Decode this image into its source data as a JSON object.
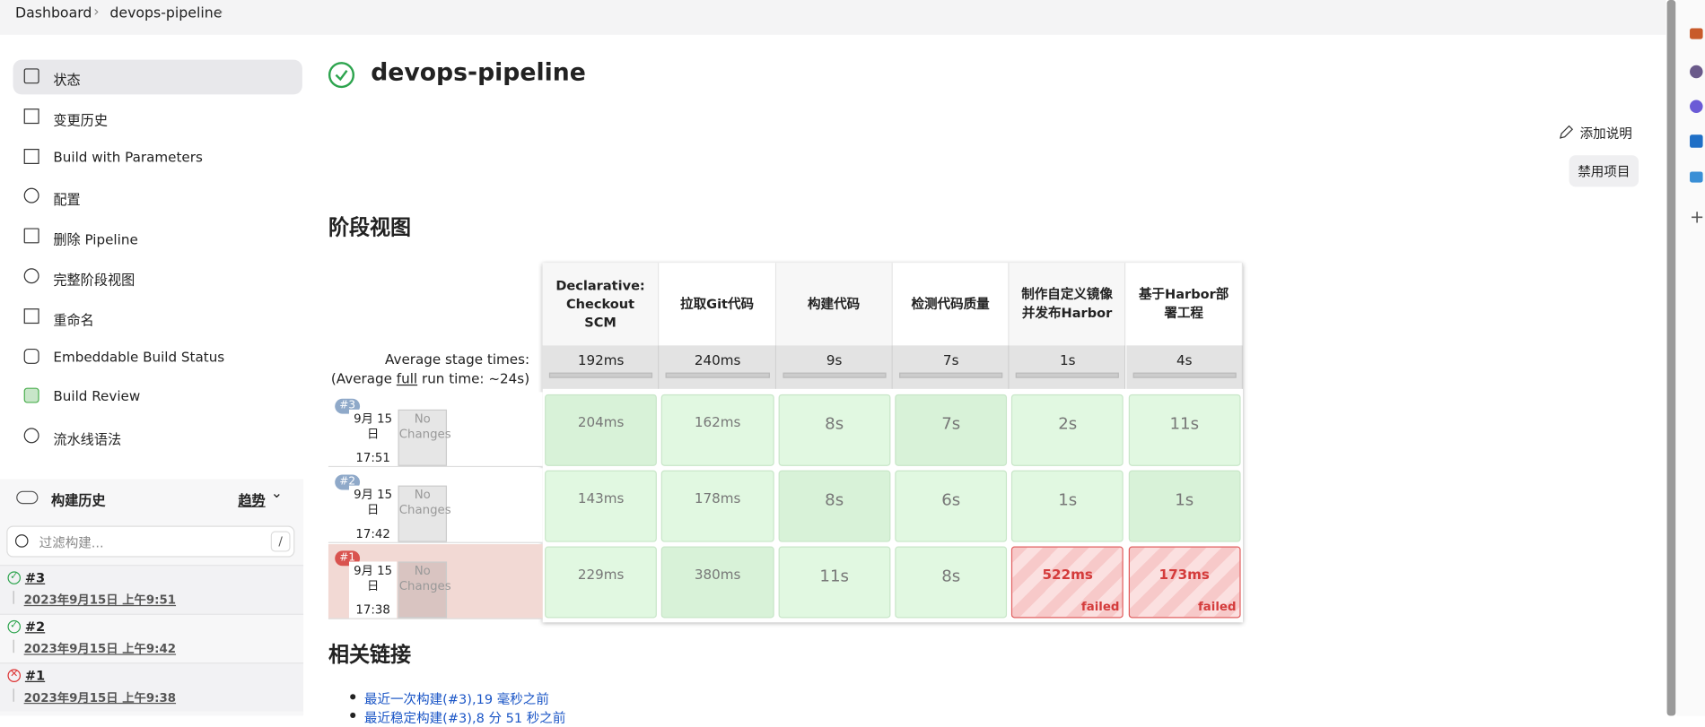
{
  "breadcrumb": {
    "items": [
      "Dashboard",
      "devops-pipeline"
    ]
  },
  "sidebar": {
    "items": [
      "状态",
      "变更历史",
      "Build with Parameters",
      "配置",
      "删除 Pipeline",
      "完整阶段视图",
      "重命名",
      "Embeddable Build Status",
      "Build Review",
      "流水线语法"
    ]
  },
  "build_history": {
    "title": "构建历史",
    "trend": "趋势",
    "filter_placeholder": "过滤构建...",
    "shortcut": "/",
    "builds": [
      {
        "number": "#3",
        "date": "2023年9月15日 上午9:51",
        "status": "success"
      },
      {
        "number": "#2",
        "date": "2023年9月15日 上午9:42",
        "status": "success"
      },
      {
        "number": "#1",
        "date": "2023年9月15日 上午9:38",
        "status": "failed"
      }
    ]
  },
  "header": {
    "title": "devops-pipeline",
    "add_description": "添加说明",
    "disable": "禁用项目"
  },
  "stage_view": {
    "title": "阶段视图",
    "avg_label": "Average stage times:",
    "avg_run_parts": [
      "(Average ",
      "full",
      " run time: ~24s)"
    ],
    "stages": [
      {
        "name": "Declarative: Checkout SCM",
        "avg": "192ms"
      },
      {
        "name": "拉取Git代码",
        "avg": "240ms"
      },
      {
        "name": "构建代码",
        "avg": "9s"
      },
      {
        "name": "检测代码质量",
        "avg": "7s"
      },
      {
        "name": "制作自定义镜像并发布Harbor",
        "avg": "1s"
      },
      {
        "name": "基于Harbor部署工程",
        "avg": "4s"
      }
    ],
    "runs": [
      {
        "badge": "#3",
        "date": "9月 15 日",
        "time": "17:51",
        "changes": "No Changes",
        "status": "success",
        "cells": [
          {
            "time": "204ms",
            "status": "success"
          },
          {
            "time": "162ms",
            "status": "success"
          },
          {
            "time": "8s",
            "status": "success"
          },
          {
            "time": "7s",
            "status": "success"
          },
          {
            "time": "2s",
            "status": "success"
          },
          {
            "time": "11s",
            "status": "success"
          }
        ]
      },
      {
        "badge": "#2",
        "date": "9月 15 日",
        "time": "17:42",
        "changes": "No Changes",
        "status": "success",
        "cells": [
          {
            "time": "143ms",
            "status": "success"
          },
          {
            "time": "178ms",
            "status": "success"
          },
          {
            "time": "8s",
            "status": "success"
          },
          {
            "time": "6s",
            "status": "success"
          },
          {
            "time": "1s",
            "status": "success"
          },
          {
            "time": "1s",
            "status": "success"
          }
        ]
      },
      {
        "badge": "#1",
        "date": "9月 15 日",
        "time": "17:38",
        "changes": "No Changes",
        "status": "failed",
        "cells": [
          {
            "time": "229ms",
            "status": "success"
          },
          {
            "time": "380ms",
            "status": "success"
          },
          {
            "time": "11s",
            "status": "success"
          },
          {
            "time": "8s",
            "status": "success"
          },
          {
            "time": "522ms",
            "status": "failed"
          },
          {
            "time": "173ms",
            "status": "failed"
          }
        ]
      }
    ]
  },
  "related": {
    "title": "相关链接",
    "links": [
      "最近一次构建(#3),19 毫秒之前",
      "最近稳定构建(#3),8 分 51 秒之前"
    ]
  }
}
